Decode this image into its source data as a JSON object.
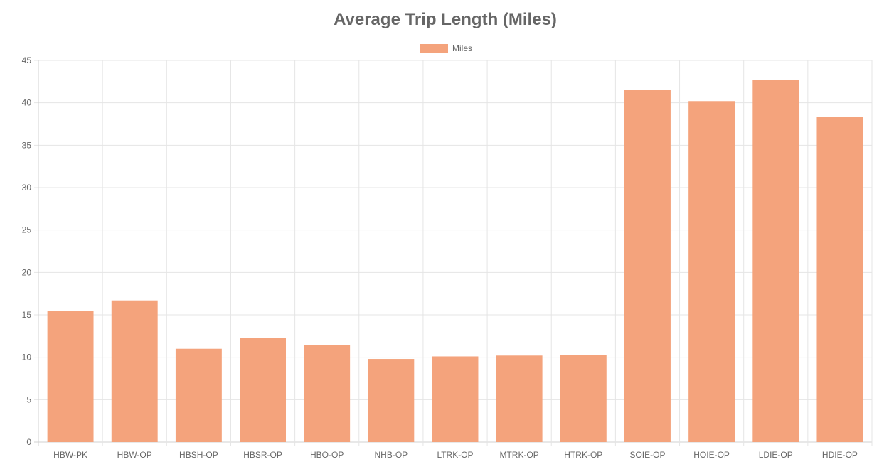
{
  "chart_data": {
    "type": "bar",
    "title": "Average Trip Length (Miles)",
    "categories": [
      "HBW-PK",
      "HBW-OP",
      "HBSH-OP",
      "HBSR-OP",
      "HBO-OP",
      "NHB-OP",
      "LTRK-OP",
      "MTRK-OP",
      "HTRK-OP",
      "SOIE-OP",
      "HOIE-OP",
      "LDIE-OP",
      "HDIE-OP"
    ],
    "series": [
      {
        "name": "Miles",
        "color": "#f4a37c",
        "values": [
          15.5,
          16.7,
          11.0,
          12.3,
          11.4,
          9.8,
          10.1,
          10.2,
          10.3,
          41.5,
          40.2,
          42.7,
          38.3
        ]
      }
    ],
    "ylim": [
      0,
      45
    ],
    "yticks": [
      0,
      5,
      10,
      15,
      20,
      25,
      30,
      35,
      40,
      45
    ],
    "grid": true,
    "legend_position": "top-center"
  }
}
